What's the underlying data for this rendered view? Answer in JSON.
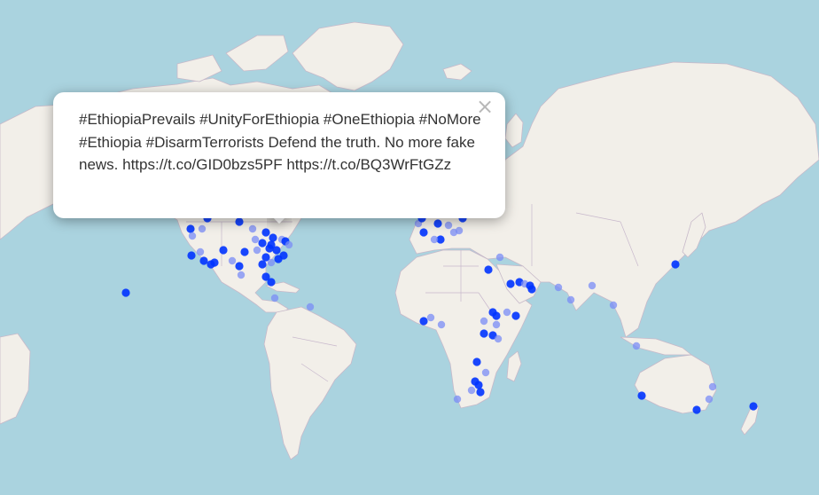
{
  "popup": {
    "text": "#EthiopiaPrevails #UnityForEthiopia #OneEthiopia #NoMore #Ethiopia #DisarmTerrorists Defend the truth. No more fake news. https://t.co/GID0bzs5PF https://t.co/BQ3WrFtGZz",
    "close_label": "×"
  },
  "colors": {
    "ocean": "#aad3df",
    "land": "#f2efe9",
    "border": "#c8b8cc",
    "marker_strong": "#0033ff",
    "marker_light": "#7a8cf5"
  },
  "close_icon": "close-icon"
}
